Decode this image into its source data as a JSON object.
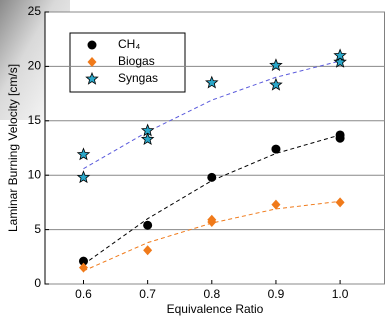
{
  "chart_data": {
    "type": "scatter",
    "x_label": "Equivalence Ratio",
    "y_label": "Laminar Burning Velocity [cm/s]",
    "xlim": [
      0.54,
      1.07
    ],
    "ylim": [
      0,
      25
    ],
    "xticks": [
      0.6,
      0.7,
      0.8,
      0.9,
      {
        "value": 1,
        "label": "1.0"
      }
    ],
    "yticks": [
      0,
      5,
      10,
      15,
      20,
      25
    ],
    "grid": true,
    "legend": "upper left",
    "series": [
      {
        "name": "CH₄",
        "color": "#000000",
        "marker": "circle",
        "fit_color": "#000000",
        "x": [
          0.6,
          0.7,
          0.8,
          0.9,
          1.0,
          1.0
        ],
        "values": [
          2.1,
          5.4,
          9.8,
          12.4,
          13.4,
          13.7
        ],
        "fit": {
          "x": [
            0.6,
            0.7,
            0.8,
            0.9,
            1.0
          ],
          "values": [
            1.8,
            6.0,
            9.5,
            12.0,
            13.7
          ]
        }
      },
      {
        "name": "Biogas",
        "color": "#f07a1a",
        "marker": "diamond",
        "fit_color": "#f07a1a",
        "x": [
          0.6,
          0.7,
          0.8,
          0.8,
          0.9,
          1.0
        ],
        "values": [
          1.5,
          3.1,
          5.7,
          5.9,
          7.3,
          7.5
        ],
        "fit": {
          "x": [
            0.6,
            0.7,
            0.8,
            0.9,
            1.0
          ],
          "values": [
            1.2,
            3.8,
            5.6,
            6.9,
            7.6
          ]
        }
      },
      {
        "name": "Syngas",
        "color": "#2aa7c9",
        "marker": "star",
        "fit_color": "#5b5bdc",
        "x": [
          0.6,
          0.6,
          0.7,
          0.7,
          0.8,
          0.9,
          0.9,
          1.0,
          1.0
        ],
        "values": [
          9.8,
          11.9,
          13.3,
          14.1,
          18.5,
          18.3,
          20.1,
          20.4,
          21.0
        ],
        "fit": {
          "x": [
            0.6,
            0.7,
            0.8,
            0.9,
            1.0
          ],
          "values": [
            10.6,
            14.0,
            16.9,
            19.0,
            20.5
          ]
        }
      }
    ]
  }
}
